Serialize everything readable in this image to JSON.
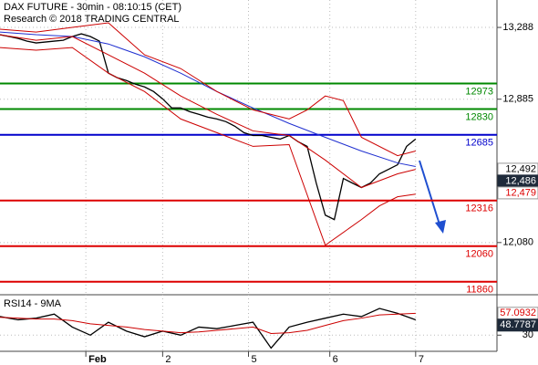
{
  "chart_data": [
    {
      "type": "price",
      "title": "DAX FUTURE - 30min - 08:10:15 (CET)",
      "subtitle": "Research © 2018 TRADING CENTRAL",
      "xlim": [
        0,
        110
      ],
      "xticks": [
        {
          "value": 19,
          "label": "Feb"
        },
        {
          "value": 36,
          "label": "2"
        },
        {
          "value": 55,
          "label": "5"
        },
        {
          "value": 73,
          "label": "6"
        },
        {
          "value": 92,
          "label": "7"
        }
      ],
      "ylim": [
        11787,
        13442
      ],
      "yticks": [
        {
          "value": 13288,
          "label": "13,288"
        },
        {
          "value": 12885,
          "label": "12,885"
        },
        {
          "value": 12080,
          "label": "12,080"
        }
      ],
      "grid": true,
      "series": [
        {
          "color": "#000000",
          "x": [
            0,
            2,
            4,
            6,
            8,
            10,
            12,
            14,
            16,
            18,
            20,
            22,
            24,
            26,
            28,
            30,
            32,
            34,
            36,
            38,
            40,
            42,
            44,
            46,
            48,
            50,
            52,
            54,
            56,
            58,
            60,
            62,
            64,
            66,
            68,
            70,
            72,
            74,
            76,
            78,
            80,
            82,
            84,
            86,
            88,
            90,
            92
          ],
          "values": [
            13247,
            13237,
            13226,
            13211,
            13201,
            13206,
            13211,
            13216,
            13237,
            13252,
            13237,
            13211,
            13031,
            13005,
            12990,
            12969,
            12954,
            12928,
            12887,
            12836,
            12836,
            12815,
            12800,
            12784,
            12774,
            12759,
            12733,
            12697,
            12681,
            12681,
            12671,
            12661,
            12681,
            12646,
            12620,
            12414,
            12234,
            12209,
            12440,
            12414,
            12389,
            12414,
            12466,
            12491,
            12517,
            12620,
            12661
          ]
        },
        {
          "color": "#1f2fd0",
          "x": [
            0,
            8,
            16,
            24,
            32,
            40,
            48,
            56,
            64,
            72,
            80,
            88,
            92
          ],
          "values": [
            13262,
            13247,
            13237,
            13195,
            13123,
            13031,
            12928,
            12836,
            12749,
            12671,
            12594,
            12527,
            12507
          ]
        },
        {
          "color": "#cc0000",
          "x": [
            0,
            8,
            16,
            24,
            32,
            40,
            48,
            56,
            64,
            72,
            80,
            88,
            92
          ],
          "values": [
            13247,
            13216,
            13237,
            13134,
            13031,
            12903,
            12800,
            12707,
            12681,
            12543,
            12389,
            12466,
            12491
          ]
        },
        {
          "color": "#cc0000",
          "x": [
            0,
            8,
            16,
            24,
            32,
            40,
            48,
            56,
            64,
            68,
            72,
            76,
            80,
            88,
            92
          ],
          "values": [
            13278,
            13262,
            13288,
            13314,
            13134,
            13057,
            12928,
            12825,
            12774,
            12825,
            12903,
            12877,
            12671,
            12568,
            12594
          ]
        },
        {
          "color": "#cc0000",
          "x": [
            0,
            8,
            16,
            24,
            32,
            40,
            48,
            56,
            64,
            72,
            80,
            84,
            88,
            92
          ],
          "values": [
            13175,
            13160,
            13175,
            13031,
            12928,
            12774,
            12697,
            12620,
            12630,
            12065,
            12209,
            12286,
            12337,
            12352
          ]
        }
      ],
      "levels": [
        {
          "value": 12973,
          "color": "#008800"
        },
        {
          "value": 12830,
          "color": "#008800"
        },
        {
          "value": 12685,
          "color": "#0000cc"
        },
        {
          "value": 12316,
          "color": "#dd0000"
        },
        {
          "value": 12060,
          "color": "#dd0000"
        },
        {
          "value": 11860,
          "color": "#dd0000"
        }
      ],
      "price_labels": [
        {
          "value": 12492,
          "label": "12,492",
          "color": "#ffffff",
          "text_color": "#000000"
        },
        {
          "value": 12486,
          "label": "12,486",
          "color": "#1e2a3a",
          "text_color": "#ffffff"
        },
        {
          "value": 12479,
          "label": "12,479",
          "color": "#ffffff",
          "text_color": "#dd0000"
        }
      ]
    },
    {
      "type": "rsi",
      "title": "RSI14 - 9MA",
      "xlim": [
        0,
        110
      ],
      "ylim": [
        10,
        80
      ],
      "yticks": [
        30
      ],
      "series": [
        {
          "color": "#000000",
          "x": [
            0,
            4,
            8,
            12,
            16,
            20,
            24,
            28,
            32,
            36,
            40,
            44,
            48,
            52,
            56,
            60,
            64,
            68,
            72,
            76,
            80,
            84,
            88,
            92
          ],
          "values": [
            53,
            49,
            51,
            56,
            40,
            30,
            46,
            35,
            28,
            35,
            30,
            40,
            38,
            42,
            46,
            14,
            40,
            46,
            51,
            56,
            53,
            63,
            57,
            49
          ]
        },
        {
          "color": "#cc0000",
          "x": [
            0,
            4,
            8,
            12,
            16,
            20,
            24,
            28,
            32,
            36,
            40,
            44,
            48,
            52,
            56,
            60,
            64,
            68,
            72,
            76,
            80,
            84,
            88,
            92
          ],
          "values": [
            52,
            51,
            50,
            50,
            48,
            44,
            42,
            40,
            37,
            35,
            33,
            34,
            36,
            38,
            40,
            32,
            33,
            36,
            42,
            48,
            51,
            55,
            56,
            57
          ]
        }
      ],
      "price_labels": [
        {
          "value": 57.0932,
          "label": "57.0932",
          "color": "#ffffff",
          "text_color": "#dd0000"
        },
        {
          "value": 48.7787,
          "label": "48.7787",
          "color": "#1e2a3a",
          "text_color": "#ffffff"
        }
      ]
    }
  ]
}
